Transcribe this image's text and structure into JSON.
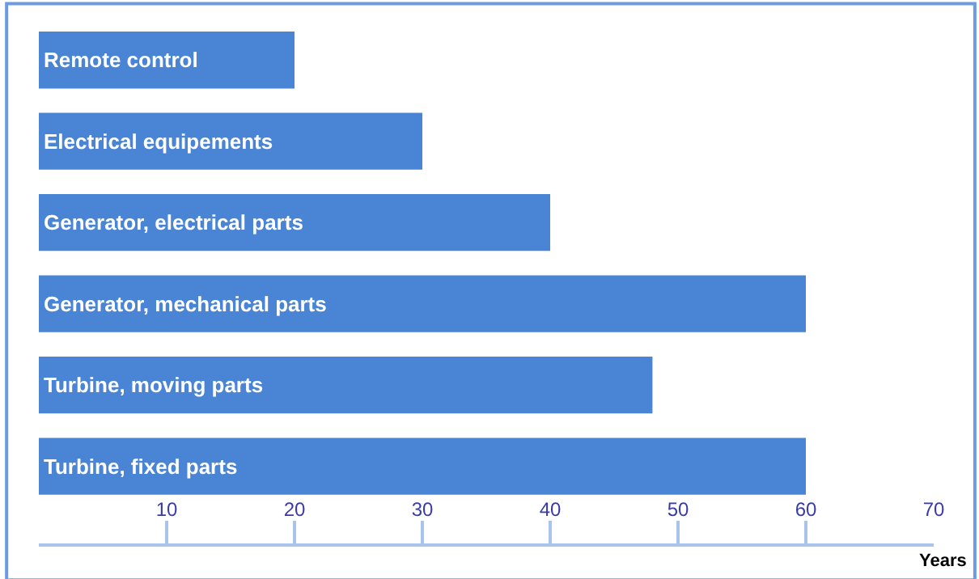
{
  "chart_data": {
    "type": "bar",
    "orientation": "horizontal",
    "xlabel": "Years",
    "categories": [
      "Remote control",
      "Electrical equipements",
      "Generator, electrical parts",
      "Generator, mechanical parts",
      "Turbine, moving parts",
      "Turbine, fixed parts"
    ],
    "values": [
      20,
      30,
      40,
      60,
      48,
      60
    ],
    "color": "#4a84d4",
    "xlim": [
      0,
      70
    ],
    "xticks": [
      10,
      20,
      30,
      40,
      50,
      60,
      70
    ],
    "tick_labels": "x"
  }
}
